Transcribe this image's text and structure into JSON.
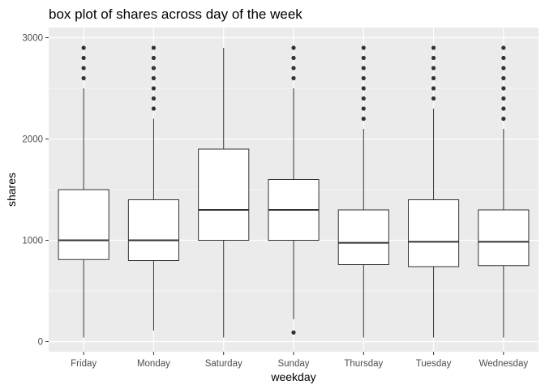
{
  "chart_data": {
    "type": "boxplot",
    "title": "box plot of shares across day of the week",
    "xlabel": "weekday",
    "ylabel": "shares",
    "ylim": [
      -100,
      3100
    ],
    "yticks": [
      0,
      1000,
      2000,
      3000
    ],
    "grid": true,
    "legend": "none",
    "categories": [
      "Friday",
      "Monday",
      "Saturday",
      "Sunday",
      "Thursday",
      "Tuesday",
      "Wednesday"
    ],
    "boxes": [
      {
        "name": "Friday",
        "min": 40,
        "q1": 810,
        "median": 1000,
        "q3": 1500,
        "max": 2500,
        "outliers": [
          2600,
          2700,
          2800,
          2900
        ]
      },
      {
        "name": "Monday",
        "min": 110,
        "q1": 800,
        "median": 1000,
        "q3": 1400,
        "max": 2200,
        "outliers": [
          2300,
          2400,
          2500,
          2600,
          2700,
          2800,
          2900
        ]
      },
      {
        "name": "Saturday",
        "min": 40,
        "q1": 1000,
        "median": 1300,
        "q3": 1900,
        "max": 2900,
        "outliers": []
      },
      {
        "name": "Sunday",
        "min": 220,
        "q1": 1000,
        "median": 1300,
        "q3": 1600,
        "max": 2500,
        "outliers": [
          90,
          2600,
          2700,
          2800,
          2900
        ]
      },
      {
        "name": "Thursday",
        "min": 40,
        "q1": 760,
        "median": 975,
        "q3": 1300,
        "max": 2100,
        "outliers": [
          2200,
          2300,
          2400,
          2500,
          2600,
          2700,
          2800,
          2900
        ]
      },
      {
        "name": "Tuesday",
        "min": 40,
        "q1": 740,
        "median": 985,
        "q3": 1400,
        "max": 2300,
        "outliers": [
          2400,
          2500,
          2600,
          2700,
          2800,
          2900
        ]
      },
      {
        "name": "Wednesday",
        "min": 40,
        "q1": 750,
        "median": 985,
        "q3": 1300,
        "max": 2100,
        "outliers": [
          2200,
          2300,
          2400,
          2500,
          2600,
          2700,
          2800,
          2900
        ]
      }
    ]
  },
  "colors": {
    "panel_background": "#ebebeb",
    "grid_major": "#ffffff",
    "box_fill": "#ffffff",
    "box_stroke": "#333333",
    "outlier": "#333333",
    "tick_text": "#4d4d4d"
  }
}
